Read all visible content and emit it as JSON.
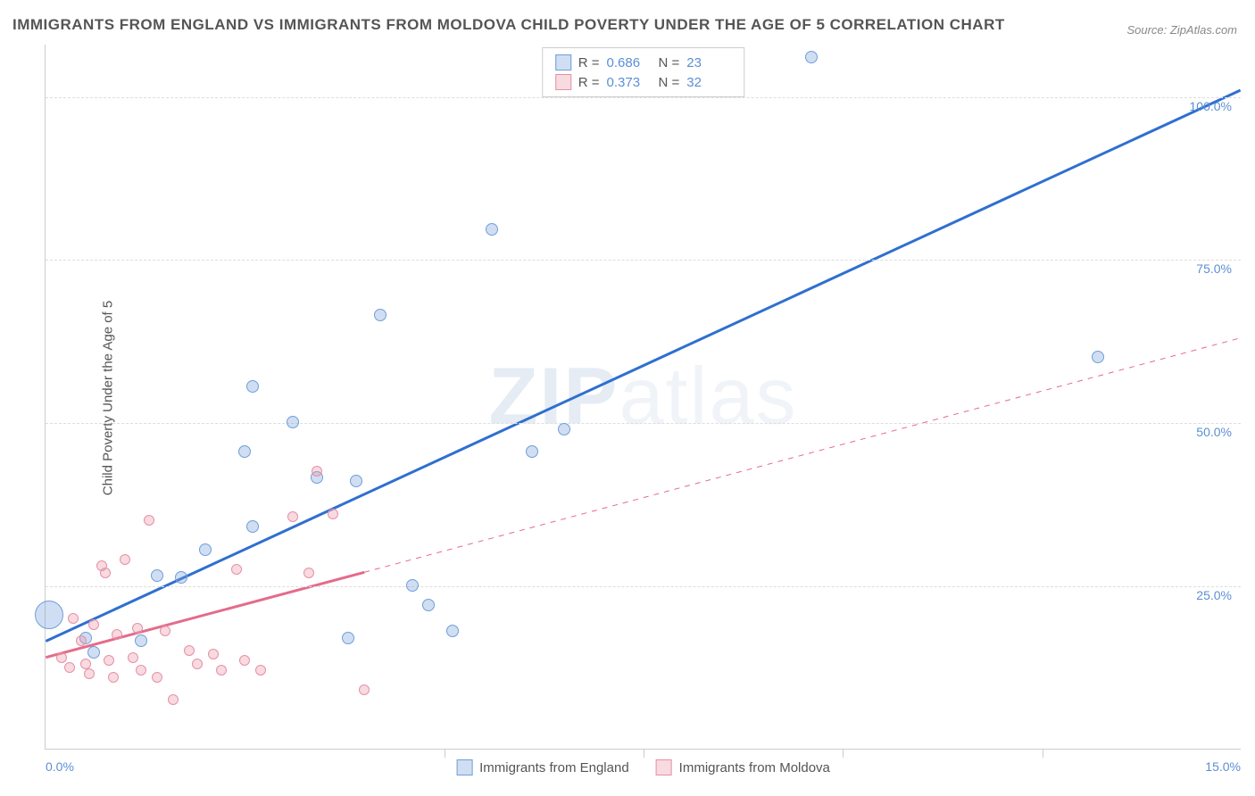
{
  "title": "IMMIGRANTS FROM ENGLAND VS IMMIGRANTS FROM MOLDOVA CHILD POVERTY UNDER THE AGE OF 5 CORRELATION CHART",
  "source": "Source: ZipAtlas.com",
  "y_axis_label": "Child Poverty Under the Age of 5",
  "watermark": {
    "bold": "ZIP",
    "light": "atlas"
  },
  "chart": {
    "type": "scatter",
    "xlim": [
      0,
      15
    ],
    "ylim": [
      0,
      108
    ],
    "x_ticks": [
      0,
      5,
      7.5,
      10,
      12.5,
      15
    ],
    "x_tick_labels": {
      "0": "0.0%",
      "15": "15.0%"
    },
    "y_gridlines": [
      25,
      50,
      75,
      100
    ],
    "y_tick_labels": [
      "25.0%",
      "50.0%",
      "75.0%",
      "100.0%"
    ],
    "background_color": "#ffffff",
    "grid_color": "#dddddd",
    "axis_color": "#cccccc",
    "label_color": "#5b8fd6",
    "series": [
      {
        "name": "Immigrants from England",
        "color_fill": "rgba(120, 160, 220, 0.35)",
        "color_stroke": "#6f9ed6",
        "trend_color": "#2f6fd0",
        "trend_width": 3,
        "trend": {
          "x1": 0.0,
          "y1": 16.5,
          "x2": 15.0,
          "y2": 101.0,
          "dashed_from_x": null
        },
        "r": 0.686,
        "n": 23,
        "points": [
          {
            "x": 0.05,
            "y": 20.5,
            "r": 16
          },
          {
            "x": 0.5,
            "y": 17.0,
            "r": 7
          },
          {
            "x": 0.6,
            "y": 14.8,
            "r": 7
          },
          {
            "x": 1.2,
            "y": 16.5,
            "r": 7
          },
          {
            "x": 1.4,
            "y": 26.5,
            "r": 7
          },
          {
            "x": 1.7,
            "y": 26.3,
            "r": 7
          },
          {
            "x": 2.0,
            "y": 30.5,
            "r": 7
          },
          {
            "x": 2.5,
            "y": 45.5,
            "r": 7
          },
          {
            "x": 2.6,
            "y": 55.5,
            "r": 7
          },
          {
            "x": 2.6,
            "y": 34.0,
            "r": 7
          },
          {
            "x": 3.1,
            "y": 50.0,
            "r": 7
          },
          {
            "x": 3.4,
            "y": 41.5,
            "r": 7
          },
          {
            "x": 3.8,
            "y": 17.0,
            "r": 7
          },
          {
            "x": 3.9,
            "y": 41.0,
            "r": 7
          },
          {
            "x": 4.2,
            "y": 66.5,
            "r": 7
          },
          {
            "x": 4.6,
            "y": 25.0,
            "r": 7
          },
          {
            "x": 4.8,
            "y": 22.0,
            "r": 7
          },
          {
            "x": 5.1,
            "y": 18.0,
            "r": 7
          },
          {
            "x": 5.6,
            "y": 79.5,
            "r": 7
          },
          {
            "x": 6.1,
            "y": 45.5,
            "r": 7
          },
          {
            "x": 6.5,
            "y": 49.0,
            "r": 7
          },
          {
            "x": 9.6,
            "y": 106.0,
            "r": 7
          },
          {
            "x": 13.2,
            "y": 60.0,
            "r": 7
          }
        ]
      },
      {
        "name": "Immigrants from Moldova",
        "color_fill": "rgba(235, 150, 170, 0.35)",
        "color_stroke": "#e690a5",
        "trend_color": "#e56b8a",
        "trend_width": 3,
        "trend": {
          "x1": 0.0,
          "y1": 14.0,
          "x2": 15.0,
          "y2": 63.0,
          "dashed_from_x": 4.0
        },
        "r": 0.373,
        "n": 32,
        "points": [
          {
            "x": 0.2,
            "y": 14.0,
            "r": 6
          },
          {
            "x": 0.3,
            "y": 12.5,
            "r": 6
          },
          {
            "x": 0.35,
            "y": 20.0,
            "r": 6
          },
          {
            "x": 0.45,
            "y": 16.5,
            "r": 6
          },
          {
            "x": 0.5,
            "y": 13.0,
            "r": 6
          },
          {
            "x": 0.55,
            "y": 11.5,
            "r": 6
          },
          {
            "x": 0.6,
            "y": 19.0,
            "r": 6
          },
          {
            "x": 0.7,
            "y": 28.0,
            "r": 6
          },
          {
            "x": 0.75,
            "y": 27.0,
            "r": 6
          },
          {
            "x": 0.8,
            "y": 13.5,
            "r": 6
          },
          {
            "x": 0.85,
            "y": 11.0,
            "r": 6
          },
          {
            "x": 0.9,
            "y": 17.5,
            "r": 6
          },
          {
            "x": 1.0,
            "y": 29.0,
            "r": 6
          },
          {
            "x": 1.1,
            "y": 14.0,
            "r": 6
          },
          {
            "x": 1.15,
            "y": 18.5,
            "r": 6
          },
          {
            "x": 1.2,
            "y": 12.0,
            "r": 6
          },
          {
            "x": 1.3,
            "y": 35.0,
            "r": 6
          },
          {
            "x": 1.4,
            "y": 11.0,
            "r": 6
          },
          {
            "x": 1.5,
            "y": 18.0,
            "r": 6
          },
          {
            "x": 1.6,
            "y": 7.5,
            "r": 6
          },
          {
            "x": 1.8,
            "y": 15.0,
            "r": 6
          },
          {
            "x": 1.9,
            "y": 13.0,
            "r": 6
          },
          {
            "x": 2.1,
            "y": 14.5,
            "r": 6
          },
          {
            "x": 2.2,
            "y": 12.0,
            "r": 6
          },
          {
            "x": 2.4,
            "y": 27.5,
            "r": 6
          },
          {
            "x": 2.5,
            "y": 13.5,
            "r": 6
          },
          {
            "x": 2.7,
            "y": 12.0,
            "r": 6
          },
          {
            "x": 3.1,
            "y": 35.5,
            "r": 6
          },
          {
            "x": 3.3,
            "y": 27.0,
            "r": 6
          },
          {
            "x": 3.4,
            "y": 42.5,
            "r": 6
          },
          {
            "x": 3.6,
            "y": 36.0,
            "r": 6
          },
          {
            "x": 4.0,
            "y": 9.0,
            "r": 6
          }
        ]
      }
    ]
  },
  "legend_top": [
    {
      "swatch_fill": "rgba(120,160,220,0.35)",
      "swatch_stroke": "#6f9ed6",
      "r_label": "R =",
      "r": "0.686",
      "n_label": "N =",
      "n": "23"
    },
    {
      "swatch_fill": "rgba(235,150,170,0.35)",
      "swatch_stroke": "#e690a5",
      "r_label": "R =",
      "r": "0.373",
      "n_label": "N =",
      "n": "32"
    }
  ],
  "legend_bottom": [
    {
      "swatch_fill": "rgba(120,160,220,0.35)",
      "swatch_stroke": "#6f9ed6",
      "label": "Immigrants from England"
    },
    {
      "swatch_fill": "rgba(235,150,170,0.35)",
      "swatch_stroke": "#e690a5",
      "label": "Immigrants from Moldova"
    }
  ]
}
